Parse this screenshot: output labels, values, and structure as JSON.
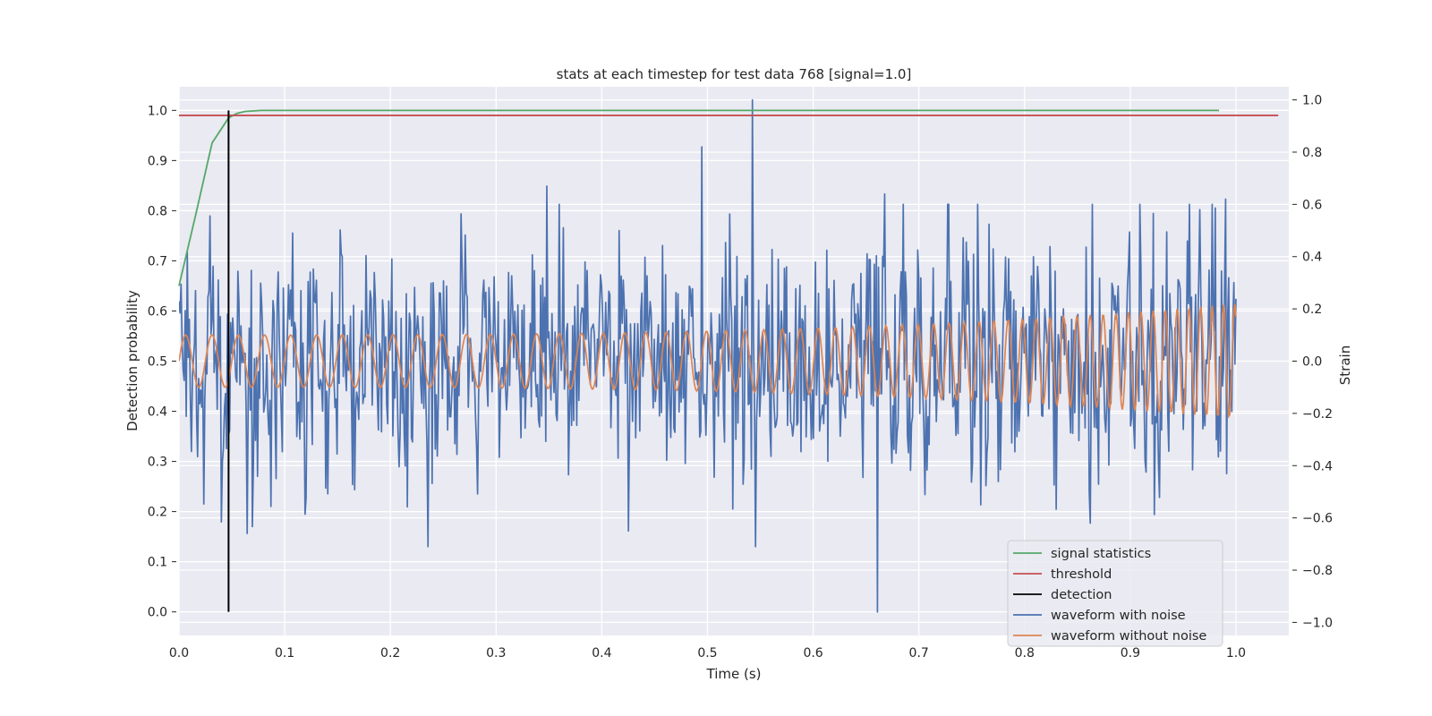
{
  "chart_data": {
    "type": "line",
    "title": "stats at each timestep for test data 768 [signal=1.0]",
    "xlabel": "Time (s)",
    "ylabel": "Detection probability",
    "y2label": "Strain",
    "xlim": [
      0.0,
      1.05
    ],
    "ylim": [
      -0.047,
      1.047
    ],
    "y2lim": [
      -1.05,
      1.05
    ],
    "x_ticks": [
      "0.0",
      "0.1",
      "0.2",
      "0.3",
      "0.4",
      "0.5",
      "0.6",
      "0.7",
      "0.8",
      "0.9",
      "1.0"
    ],
    "y_ticks": [
      "0.0",
      "0.1",
      "0.2",
      "0.3",
      "0.4",
      "0.5",
      "0.6",
      "0.7",
      "0.8",
      "0.9",
      "1.0"
    ],
    "y2_ticks": [
      "−1.0",
      "−0.8",
      "−0.6",
      "−0.4",
      "−0.2",
      "0.0",
      "0.2",
      "0.4",
      "0.6",
      "0.8",
      "1.0"
    ],
    "grid": true,
    "legend_position": "lower-right",
    "colors": {
      "signal_statistics": "#55a868",
      "threshold": "#c44e52",
      "detection": "#000000",
      "waveform_noise": "#4c72b0",
      "waveform_clean": "#dd8452",
      "plot_bg": "#eaeaf2",
      "grid": "#ffffff"
    },
    "series": [
      {
        "name": "signal statistics",
        "axis": "left",
        "x": [
          0.0,
          0.0156,
          0.0313,
          0.0469,
          0.0547,
          0.0625,
          0.0781,
          0.1,
          0.2,
          0.3,
          0.4,
          0.5,
          0.6,
          0.7,
          0.8,
          0.9,
          0.984
        ],
        "y": [
          0.65,
          0.79,
          0.935,
          0.985,
          0.994,
          0.998,
          1.0,
          1.0,
          1.0,
          1.0,
          1.0,
          1.0,
          1.0,
          1.0,
          1.0,
          1.0,
          1.0
        ]
      },
      {
        "name": "threshold",
        "axis": "left",
        "x": [
          0.0,
          1.04
        ],
        "y": [
          0.99,
          0.99
        ]
      },
      {
        "name": "detection",
        "axis": "left",
        "x": [
          0.0469,
          0.0469
        ],
        "y": [
          0.0,
          1.0
        ]
      },
      {
        "name": "waveform with noise",
        "axis": "right",
        "samples": 1024,
        "x_range": [
          0.0,
          1.0
        ],
        "noise_std": 0.22,
        "spikes": [
          {
            "x": 0.543,
            "y": 1.0
          },
          {
            "x": 0.661,
            "y": -0.96
          },
          {
            "x": 0.495,
            "y": 0.82
          },
          {
            "x": 0.545,
            "y": -0.71
          },
          {
            "x": 0.425,
            "y": -0.65
          },
          {
            "x": 0.862,
            "y": -0.62
          },
          {
            "x": 0.348,
            "y": 0.67
          },
          {
            "x": 0.99,
            "y": 0.62
          },
          {
            "x": 0.668,
            "y": 0.64
          }
        ]
      },
      {
        "name": "waveform without noise",
        "axis": "right",
        "samples": 1024,
        "x_range": [
          0.0,
          1.0
        ],
        "amplitude_start": 0.1,
        "amplitude_end": 0.22,
        "freq_start_hz": 40,
        "freq_end_hz": 95
      }
    ]
  }
}
